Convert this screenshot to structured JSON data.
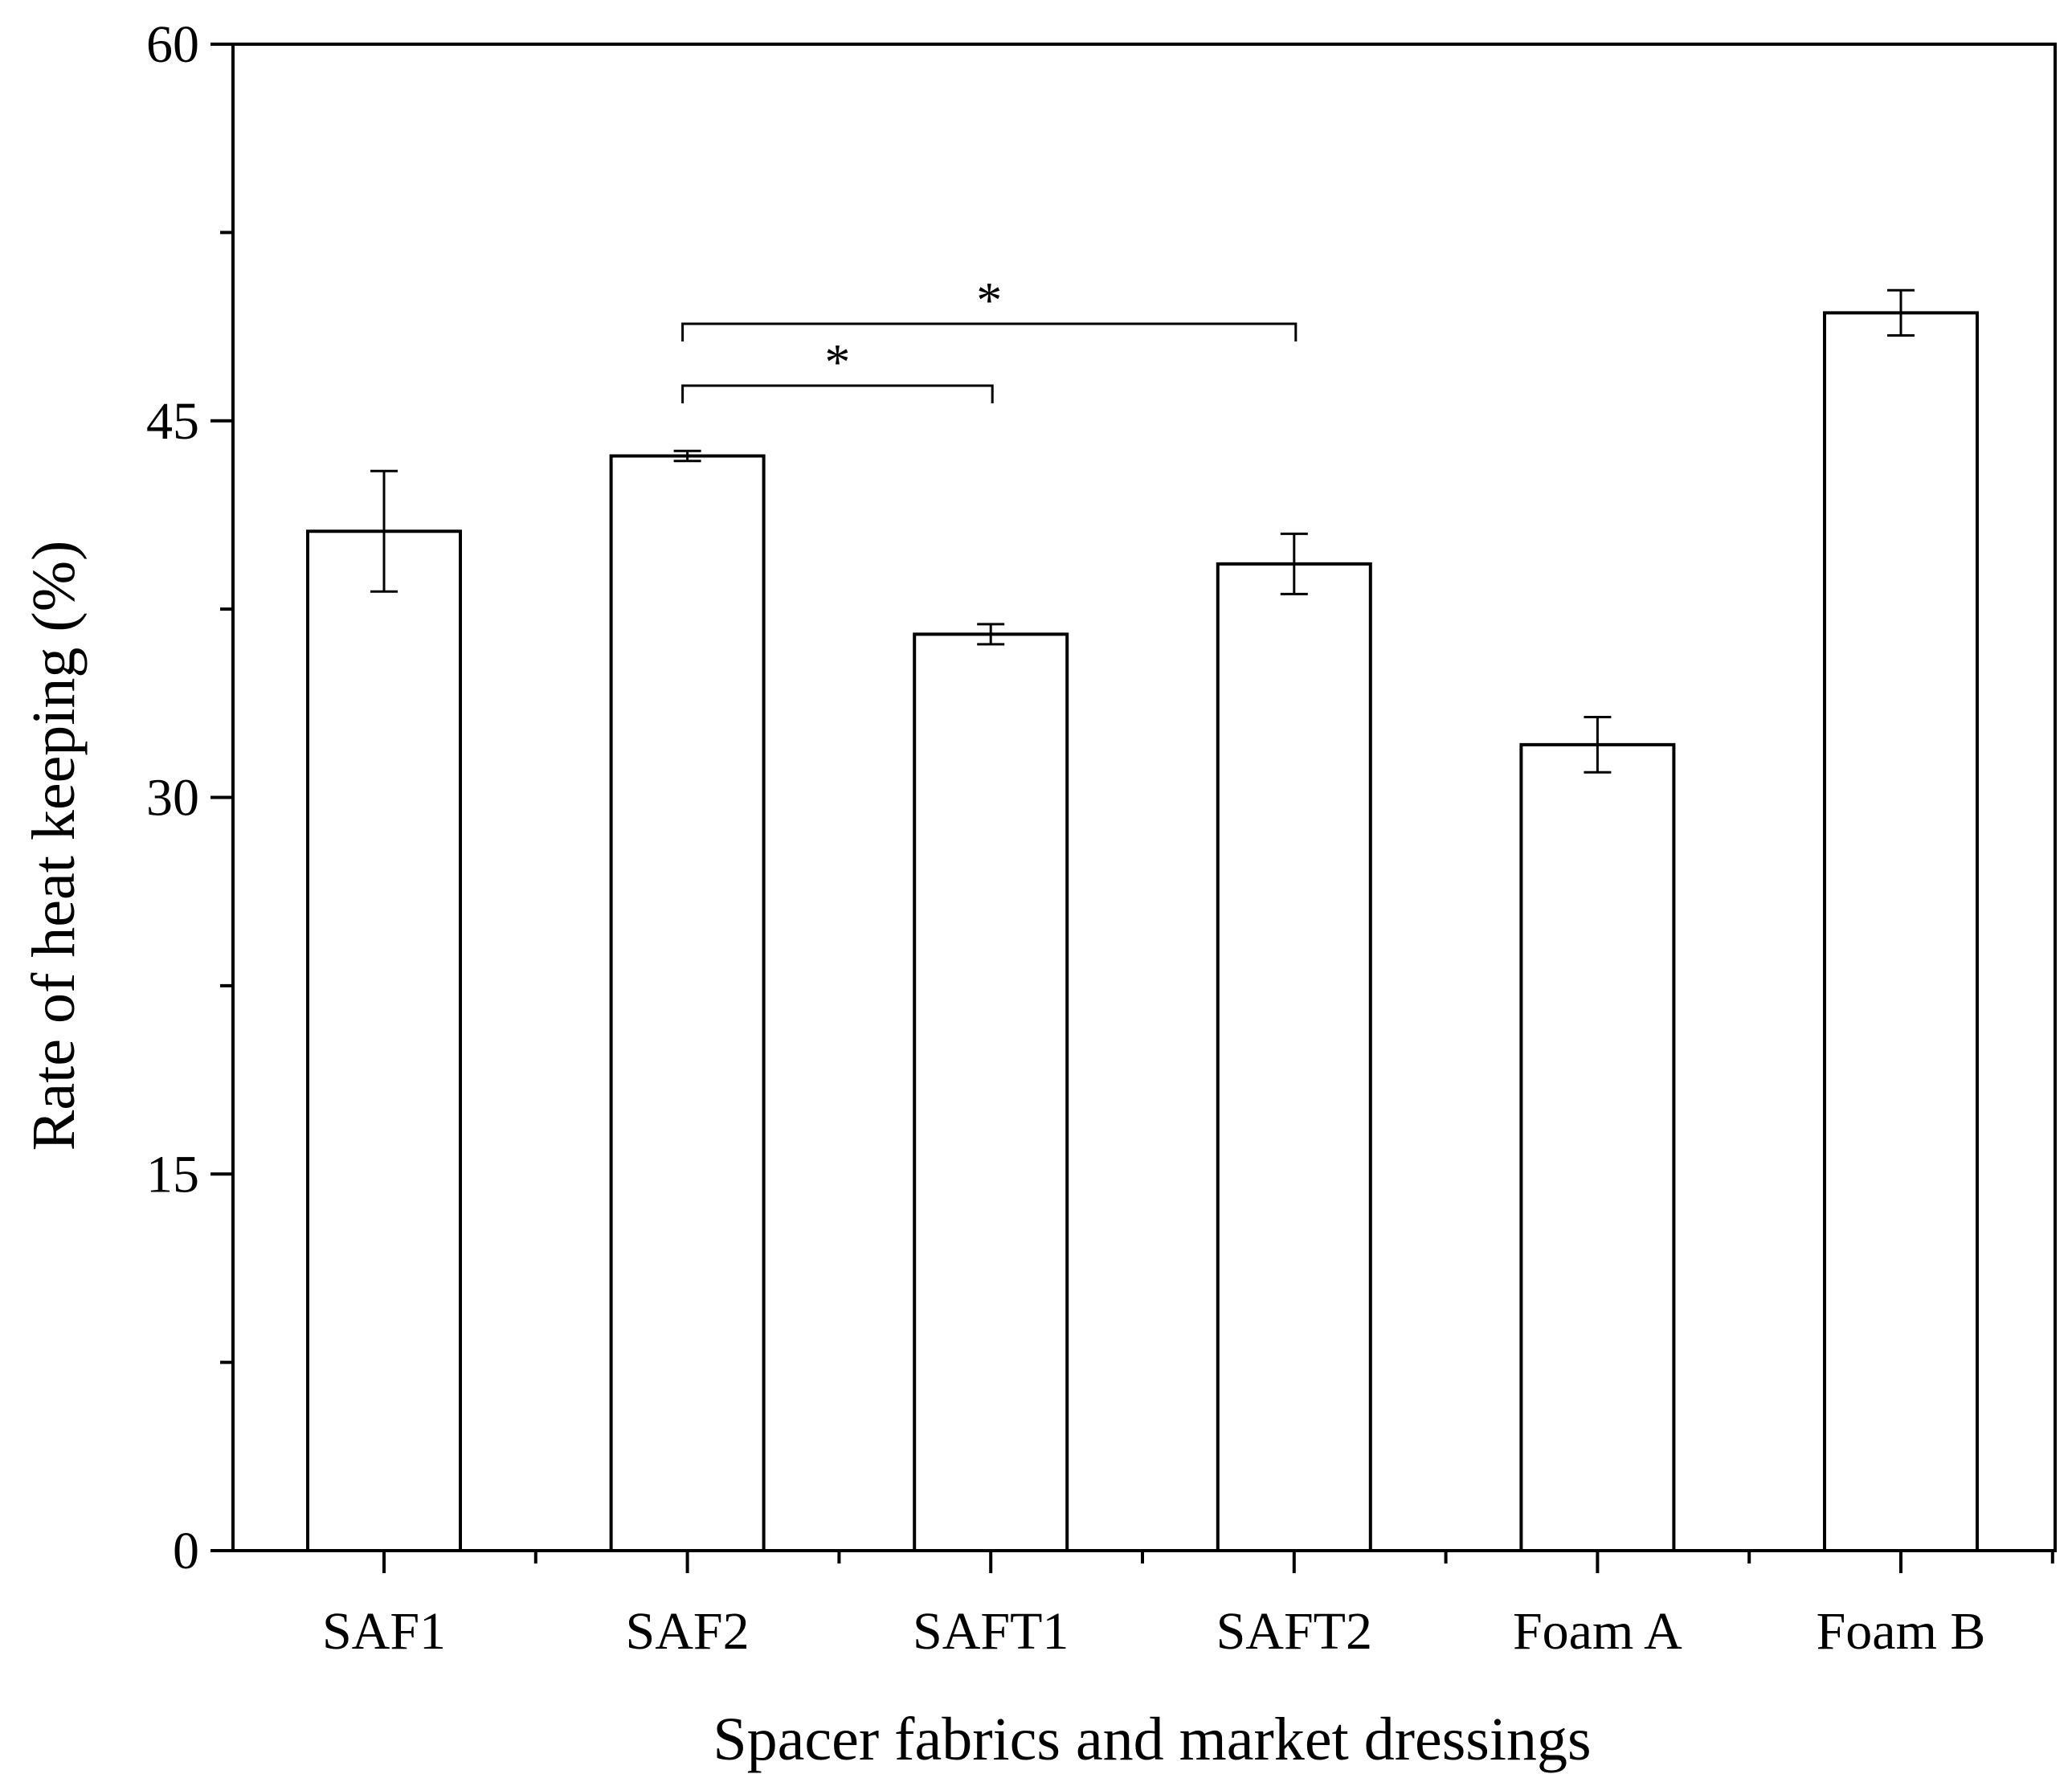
{
  "chart_data": {
    "type": "bar",
    "xlabel": "Spacer fabrics and market dressings",
    "ylabel": "Rate of heat keeping (%)",
    "ylim": [
      0,
      60
    ],
    "yticks": [
      0,
      15,
      30,
      45,
      60
    ],
    "y_minor_step": 7.5,
    "categories": [
      "SAF1",
      "SAF2",
      "SAFT1",
      "SAFT2",
      "Foam A",
      "Foam B"
    ],
    "values": [
      40.6,
      43.6,
      36.5,
      39.3,
      32.1,
      49.3
    ],
    "errors": [
      2.4,
      0.2,
      0.4,
      1.2,
      1.1,
      0.9
    ],
    "significance": [
      {
        "from": "SAF2",
        "to": "SAFT1",
        "label": "*"
      },
      {
        "from": "SAF2",
        "to": "SAFT2",
        "label": "*"
      }
    ],
    "bar_fill": "#ffffff",
    "bar_stroke": "#000000",
    "grid": false,
    "legend": "none"
  }
}
